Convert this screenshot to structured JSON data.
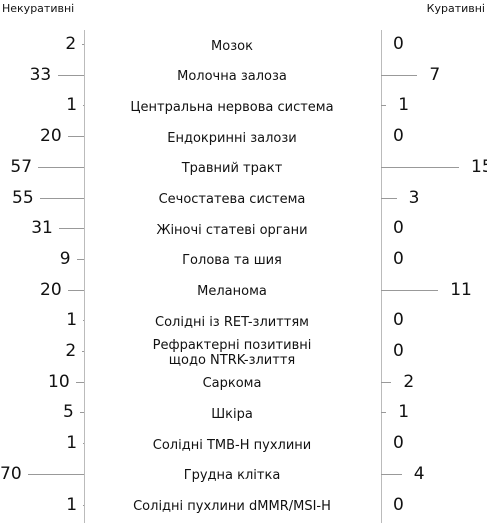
{
  "chart_data": {
    "type": "butterfly",
    "series": [
      {
        "name": "Некуративні",
        "color": "#999999",
        "values": [
          2,
          33,
          1,
          20,
          57,
          55,
          31,
          9,
          20,
          1,
          2,
          10,
          5,
          1,
          70,
          1
        ]
      },
      {
        "name": "Куративні",
        "color": "#999999",
        "values": [
          0,
          7,
          1,
          0,
          15,
          3,
          0,
          0,
          11,
          0,
          0,
          2,
          1,
          0,
          4,
          0
        ]
      }
    ],
    "categories": [
      "Мозок",
      "Молочна залоза",
      "Центральна нервова система",
      "Ендокринні залози",
      "Травний тракт",
      "Сечостатева система",
      "Жіночі статеві органи",
      "Голова та шия",
      "Меланома",
      "Солідні із RET-злиттям",
      "Рефрактерні позитивні\nщодо NTRK-злиття",
      "Саркома",
      "Шкіра",
      "Солідні TMB-H пухлини",
      "Грудна клітка",
      "Солідні пухлини dMMR/MSI-H"
    ]
  }
}
